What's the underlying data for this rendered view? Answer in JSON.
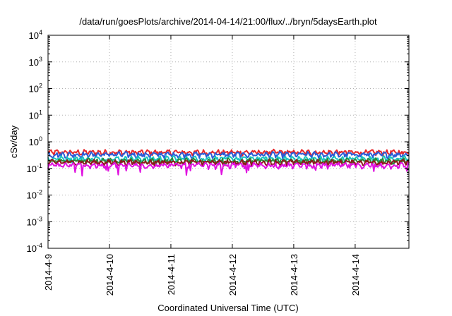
{
  "chart_data": {
    "type": "line",
    "title": "/data/run/goesPlots/archive/2014-04-14/21:00/flux/../bryn/5daysEarth.plot",
    "xlabel": "Coordinated Universal Time (UTC)",
    "ylabel": "cSv/day",
    "x_range": [
      "2014-04-09",
      "2014-04-14 21:00"
    ],
    "x_ticks": [
      "2014-4-9",
      "2014-4-10",
      "2014-4-11",
      "2014-4-12",
      "2014-4-13",
      "2014-4-14"
    ],
    "y_scale": "log",
    "ylim": [
      0.0001,
      10000
    ],
    "y_ticks": [
      {
        "base": "10",
        "exp": "4"
      },
      {
        "base": "10",
        "exp": "3"
      },
      {
        "base": "10",
        "exp": "2"
      },
      {
        "base": "10",
        "exp": "1"
      },
      {
        "base": "10",
        "exp": "0"
      },
      {
        "base": "10",
        "exp": "-1"
      },
      {
        "base": "10",
        "exp": "-2"
      },
      {
        "base": "10",
        "exp": "-3"
      },
      {
        "base": "10",
        "exp": "-4"
      }
    ],
    "grid": true,
    "series": [
      {
        "color": "#e8262a",
        "level": 0.4
      },
      {
        "color": "#2b5bd6",
        "level": 0.33
      },
      {
        "color": "#19c4c0",
        "level": 0.23
      },
      {
        "color": "#2a8a3a",
        "level": 0.19
      },
      {
        "color": "#8b1a1a",
        "level": 0.17
      },
      {
        "color": "#e010e0",
        "level": 0.13
      }
    ]
  }
}
